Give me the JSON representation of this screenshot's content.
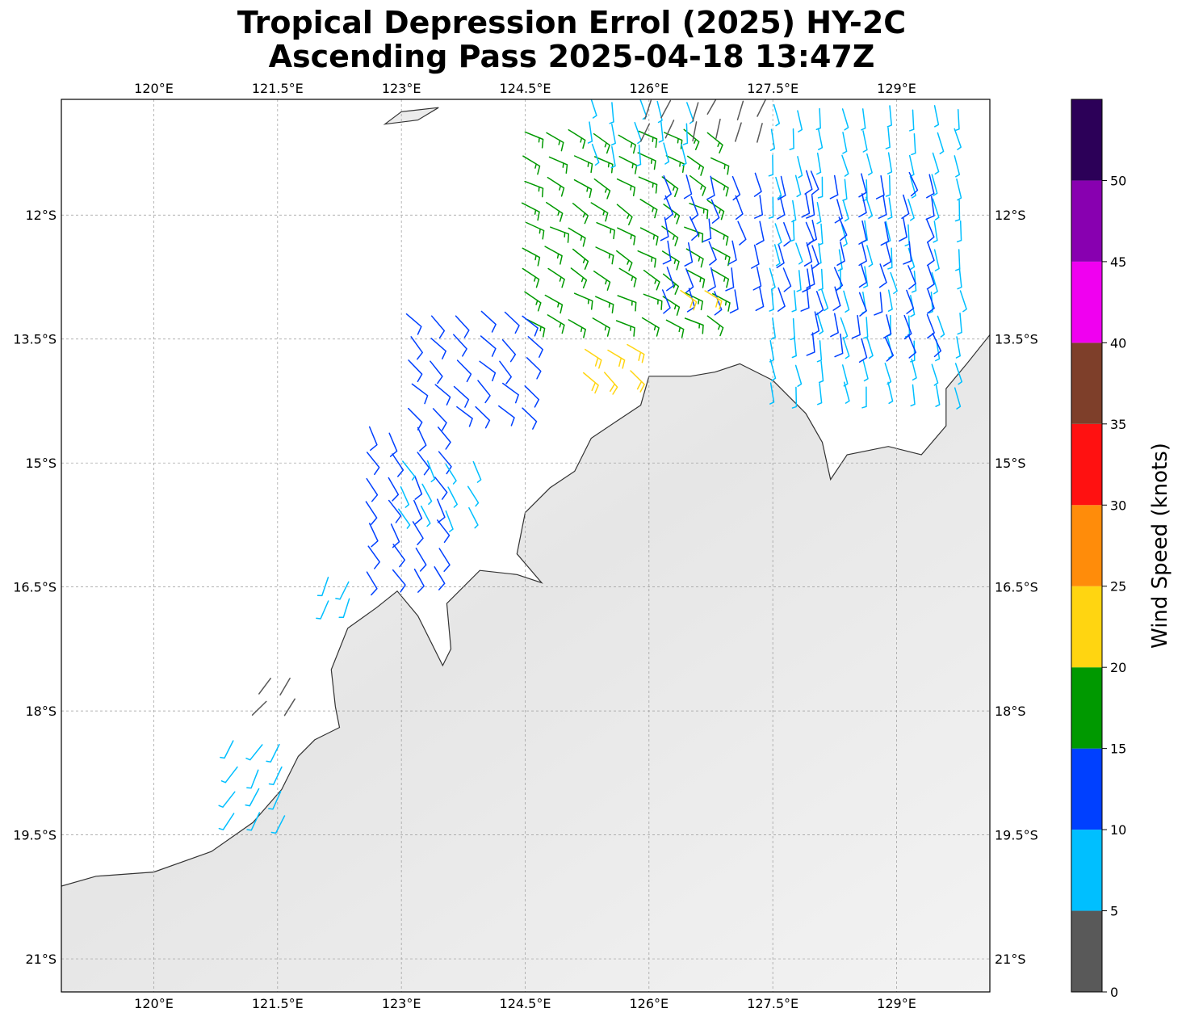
{
  "title": {
    "line1": "Tropical Depression Errol (2025) HY-2C",
    "line2": "Ascending Pass 2025-04-18 13:47Z"
  },
  "map": {
    "lon_ticks": [
      {
        "value": 120.0,
        "label": "120°E"
      },
      {
        "value": 121.5,
        "label": "121.5°E"
      },
      {
        "value": 123.0,
        "label": "123°E"
      },
      {
        "value": 124.5,
        "label": "124.5°E"
      },
      {
        "value": 126.0,
        "label": "126°E"
      },
      {
        "value": 127.5,
        "label": "127.5°E"
      },
      {
        "value": 129.0,
        "label": "129°E"
      }
    ],
    "lat_ticks": [
      {
        "value": -12.0,
        "label": "12°S"
      },
      {
        "value": -13.5,
        "label": "13.5°S"
      },
      {
        "value": -15.0,
        "label": "15°S"
      },
      {
        "value": -16.5,
        "label": "16.5°S"
      },
      {
        "value": -18.0,
        "label": "18°S"
      },
      {
        "value": -19.5,
        "label": "19.5°S"
      },
      {
        "value": -21.0,
        "label": "21°S"
      }
    ],
    "lon_range": [
      118.88,
      130.13
    ],
    "lat_range": [
      -21.4,
      -10.6
    ],
    "land_color": "#ececec",
    "coast_color": "#333333"
  },
  "colorbar": {
    "label": "Wind Speed (knots)",
    "range": [
      0,
      55
    ],
    "ticks": [
      {
        "value": 0,
        "label": "0"
      },
      {
        "value": 5,
        "label": "5"
      },
      {
        "value": 10,
        "label": "10"
      },
      {
        "value": 15,
        "label": "15"
      },
      {
        "value": 20,
        "label": "20"
      },
      {
        "value": 25,
        "label": "25"
      },
      {
        "value": 30,
        "label": "30"
      },
      {
        "value": 35,
        "label": "35"
      },
      {
        "value": 40,
        "label": "40"
      },
      {
        "value": 45,
        "label": "45"
      },
      {
        "value": 50,
        "label": "50"
      }
    ],
    "bins": [
      {
        "min": 0,
        "max": 5,
        "color": "#595959"
      },
      {
        "min": 5,
        "max": 10,
        "color": "#00bfff"
      },
      {
        "min": 10,
        "max": 15,
        "color": "#0040ff"
      },
      {
        "min": 15,
        "max": 20,
        "color": "#009900"
      },
      {
        "min": 20,
        "max": 25,
        "color": "#ffd511"
      },
      {
        "min": 25,
        "max": 30,
        "color": "#ff8c0a"
      },
      {
        "min": 30,
        "max": 35,
        "color": "#ff1111"
      },
      {
        "min": 35,
        "max": 40,
        "color": "#7e3f2a"
      },
      {
        "min": 40,
        "max": 45,
        "color": "#f000f0"
      },
      {
        "min": 45,
        "max": 50,
        "color": "#8800b0"
      },
      {
        "min": 50,
        "max": 55,
        "color": "#2c0058"
      }
    ]
  },
  "chart_data": {
    "type": "scatter",
    "kind": "wind-barbs",
    "units": "knots",
    "description_free": true,
    "regions": [
      {
        "lon": [
          124.5,
          126.8
        ],
        "lat": [
          -13.3,
          -11.0
        ],
        "speed": 17,
        "dir_deg": 120
      },
      {
        "lon": [
          123.1,
          124.6
        ],
        "lat": [
          -14.5,
          -13.2
        ],
        "speed": 12,
        "dir_deg": 135
      },
      {
        "lon": [
          122.6,
          123.7
        ],
        "lat": [
          -16.4,
          -14.6
        ],
        "speed": 12,
        "dir_deg": 150
      },
      {
        "lon": [
          123.0,
          124.0
        ],
        "lat": [
          -15.6,
          -15.0
        ],
        "speed": 8,
        "dir_deg": 150
      },
      {
        "lon": [
          125.3,
          126.5
        ],
        "lat": [
          -11.3,
          -10.6
        ],
        "speed": 6,
        "dir_deg": 170
      },
      {
        "lon": [
          126.0,
          127.5
        ],
        "lat": [
          -11.0,
          -10.6
        ],
        "speed": 3,
        "dir_deg": 200
      },
      {
        "lon": [
          126.2,
          128.0
        ],
        "lat": [
          -13.0,
          -11.5
        ],
        "speed": 12,
        "dir_deg": 165
      },
      {
        "lon": [
          127.5,
          130.0
        ],
        "lat": [
          -14.3,
          -10.7
        ],
        "speed": 8,
        "dir_deg": 170
      },
      {
        "lon": [
          128.0,
          129.5
        ],
        "lat": [
          -13.5,
          -11.5
        ],
        "speed": 11,
        "dir_deg": 165
      },
      {
        "lon": [
          125.2,
          125.8
        ],
        "lat": [
          -14.0,
          -13.6
        ],
        "speed": 21,
        "dir_deg": 130
      },
      {
        "lon": [
          126.4,
          126.7
        ],
        "lat": [
          -13.1,
          -12.9
        ],
        "speed": 21,
        "dir_deg": 130
      },
      {
        "lon": [
          122.1,
          122.6
        ],
        "lat": [
          -16.9,
          -16.4
        ],
        "speed": 8,
        "dir_deg": 200
      },
      {
        "lon": [
          121.4,
          121.9
        ],
        "lat": [
          -18.0,
          -17.6
        ],
        "speed": 3,
        "dir_deg": 220
      },
      {
        "lon": [
          121.0,
          121.8
        ],
        "lat": [
          -19.4,
          -18.4
        ],
        "speed": 8,
        "dir_deg": 210
      }
    ]
  }
}
